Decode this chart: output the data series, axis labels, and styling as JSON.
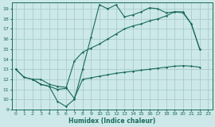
{
  "xlabel": "Humidex (Indice chaleur)",
  "bg_color": "#cce8e8",
  "grid_color": "#aacccc",
  "line_color": "#1a6b5a",
  "xlim": [
    -0.5,
    23.5
  ],
  "ylim": [
    9,
    19.6
  ],
  "yticks": [
    9,
    10,
    11,
    12,
    13,
    14,
    15,
    16,
    17,
    18,
    19
  ],
  "xticks": [
    0,
    1,
    2,
    3,
    4,
    5,
    6,
    7,
    8,
    9,
    10,
    11,
    12,
    13,
    14,
    15,
    16,
    17,
    18,
    19,
    20,
    21,
    22,
    23
  ],
  "line1_x": [
    0,
    1,
    2,
    3,
    4,
    5,
    6,
    7,
    8,
    9,
    10,
    11,
    12,
    13,
    14,
    15,
    16,
    17,
    18,
    19,
    20,
    21,
    22
  ],
  "line1_y": [
    13,
    12.2,
    12,
    11.5,
    11.3,
    9.8,
    9.3,
    10.0,
    13.0,
    16.2,
    19.4,
    19.0,
    19.4,
    18.2,
    18.4,
    18.7,
    19.1,
    19.0,
    18.6,
    18.7,
    18.6,
    17.5,
    15.0
  ],
  "line2_x": [
    2,
    3,
    4,
    5,
    6,
    7,
    8,
    9,
    10,
    11,
    12,
    13,
    14,
    15,
    16,
    17,
    18,
    19,
    20,
    21,
    22
  ],
  "line2_y": [
    12,
    12,
    11.5,
    11.3,
    11.2,
    10.1,
    12.0,
    12.15,
    12.3,
    12.45,
    12.6,
    12.7,
    12.8,
    12.9,
    13.0,
    13.1,
    13.2,
    13.3,
    13.35,
    13.3,
    13.2
  ],
  "line3_x": [
    0,
    1,
    2,
    3,
    4,
    5,
    6,
    7,
    8,
    9,
    10,
    11,
    12,
    13,
    14,
    15,
    16,
    17,
    18,
    19,
    20,
    21,
    22
  ],
  "line3_y": [
    13,
    12.2,
    12,
    11.5,
    11.3,
    11.0,
    11.1,
    13.8,
    14.7,
    15.1,
    15.5,
    16.0,
    16.5,
    17.0,
    17.3,
    17.5,
    17.8,
    18.0,
    18.3,
    18.7,
    18.7,
    17.5,
    15.0
  ]
}
